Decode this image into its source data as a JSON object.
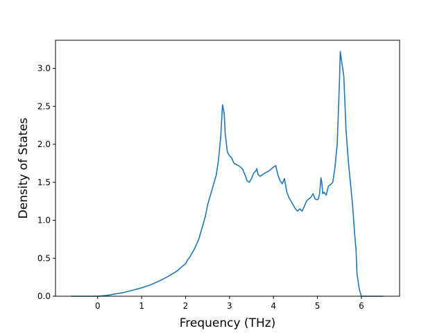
{
  "chart_data": {
    "type": "line",
    "title": "",
    "xlabel": "Frequency (THz)",
    "ylabel": "Density of States",
    "xlim": [
      -0.96,
      6.87
    ],
    "ylim": [
      0,
      3.37
    ],
    "xticks": [
      0,
      1,
      2,
      3,
      4,
      5,
      6
    ],
    "yticks": [
      0.0,
      0.5,
      1.0,
      1.5,
      2.0,
      2.5,
      3.0
    ],
    "xtick_labels": [
      "0",
      "1",
      "2",
      "3",
      "4",
      "5",
      "6"
    ],
    "ytick_labels": [
      "0.0",
      "0.5",
      "1.0",
      "1.5",
      "2.0",
      "2.5",
      "3.0"
    ],
    "grid": false,
    "color": "#1f77b4",
    "series": [
      {
        "x": [
          -0.6,
          -0.3,
          0.0,
          0.2,
          0.4,
          0.6,
          0.8,
          1.0,
          1.2,
          1.4,
          1.6,
          1.8,
          2.0,
          2.05,
          2.1,
          2.2,
          2.3,
          2.4,
          2.45,
          2.5,
          2.6,
          2.7,
          2.75,
          2.8,
          2.84,
          2.88,
          2.9,
          2.95,
          3.0,
          3.05,
          3.1,
          3.2,
          3.25,
          3.3,
          3.35,
          3.4,
          3.45,
          3.5,
          3.55,
          3.6,
          3.62,
          3.65,
          3.7,
          3.75,
          3.8,
          3.9,
          4.0,
          4.05,
          4.08,
          4.1,
          4.15,
          4.2,
          4.25,
          4.3,
          4.35,
          4.4,
          4.45,
          4.5,
          4.55,
          4.6,
          4.65,
          4.7,
          4.75,
          4.8,
          4.85,
          4.9,
          4.95,
          5.0,
          5.02,
          5.05,
          5.08,
          5.1,
          5.12,
          5.15,
          5.2,
          5.25,
          5.3,
          5.35,
          5.4,
          5.45,
          5.5,
          5.52,
          5.55,
          5.6,
          5.65,
          5.7,
          5.75,
          5.8,
          5.85,
          5.88,
          5.9,
          5.95,
          6.0,
          6.5
        ],
        "y": [
          0.0,
          0.0,
          0.0,
          0.01,
          0.03,
          0.05,
          0.08,
          0.11,
          0.15,
          0.2,
          0.26,
          0.33,
          0.43,
          0.48,
          0.52,
          0.62,
          0.75,
          0.95,
          1.05,
          1.2,
          1.4,
          1.6,
          1.8,
          2.1,
          2.52,
          2.4,
          2.15,
          1.9,
          1.85,
          1.82,
          1.75,
          1.72,
          1.7,
          1.67,
          1.6,
          1.52,
          1.5,
          1.55,
          1.62,
          1.65,
          1.68,
          1.6,
          1.58,
          1.6,
          1.62,
          1.65,
          1.7,
          1.72,
          1.65,
          1.6,
          1.52,
          1.48,
          1.55,
          1.38,
          1.3,
          1.25,
          1.2,
          1.15,
          1.12,
          1.15,
          1.12,
          1.18,
          1.25,
          1.28,
          1.3,
          1.35,
          1.28,
          1.27,
          1.28,
          1.35,
          1.56,
          1.5,
          1.35,
          1.37,
          1.33,
          1.45,
          1.47,
          1.5,
          1.7,
          2.0,
          2.8,
          3.22,
          3.1,
          2.9,
          2.2,
          1.8,
          1.5,
          1.2,
          0.8,
          0.6,
          0.3,
          0.1,
          0.0,
          0.0
        ]
      }
    ]
  }
}
